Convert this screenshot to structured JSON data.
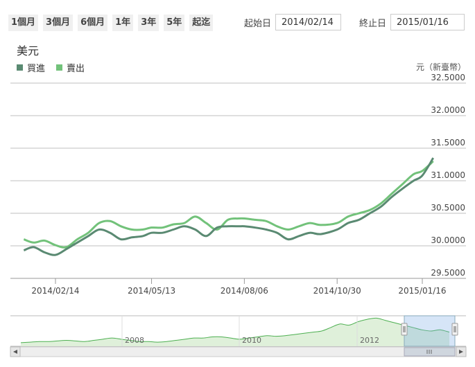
{
  "toolbar": {
    "ranges": [
      "1個月",
      "3個月",
      "6個月",
      "1年",
      "3年",
      "5年",
      "起迄"
    ],
    "start_label": "起始日",
    "start_value": "2014/02/14",
    "end_label": "終止日",
    "end_value": "2015/01/16"
  },
  "unit_label": "元（新臺幣）",
  "colors": {
    "buy": "#5a8a72",
    "sell": "#72c27a",
    "grid": "#bfbfbf",
    "navigator_fill": "#dff0da"
  },
  "chart_data": {
    "type": "line",
    "title": "美元",
    "ylim": [
      29.5,
      32.5
    ],
    "yticks": [
      "32.5000",
      "32.0000",
      "31.5000",
      "31.0000",
      "30.5000",
      "30.0000",
      "29.5000"
    ],
    "x_tick_labels": [
      "2014/02/14",
      "2014/05/13",
      "2014/08/06",
      "2014/10/30",
      "2015/01/16"
    ],
    "x": [
      "2014/01/16",
      "2014/01/25",
      "2014/02/04",
      "2014/02/14",
      "2014/02/24",
      "2014/03/06",
      "2014/03/16",
      "2014/03/26",
      "2014/04/05",
      "2014/04/15",
      "2014/04/25",
      "2014/05/05",
      "2014/05/13",
      "2014/05/23",
      "2014/06/02",
      "2014/06/12",
      "2014/06/22",
      "2014/07/02",
      "2014/07/12",
      "2014/07/22",
      "2014/08/01",
      "2014/08/06",
      "2014/08/16",
      "2014/08/26",
      "2014/09/05",
      "2014/09/15",
      "2014/09/25",
      "2014/10/05",
      "2014/10/15",
      "2014/10/30",
      "2014/11/09",
      "2014/11/19",
      "2014/11/29",
      "2014/12/09",
      "2014/12/19",
      "2014/12/29",
      "2015/01/08",
      "2015/01/16",
      "2015/01/26"
    ],
    "series": [
      {
        "name": "買進",
        "values": [
          29.93,
          29.98,
          29.9,
          29.86,
          29.95,
          30.05,
          30.15,
          30.25,
          30.2,
          30.1,
          30.13,
          30.15,
          30.2,
          30.2,
          30.25,
          30.3,
          30.25,
          30.15,
          30.28,
          30.3,
          30.3,
          30.3,
          30.28,
          30.25,
          30.2,
          30.1,
          30.15,
          30.2,
          30.18,
          30.25,
          30.35,
          30.4,
          30.5,
          30.6,
          30.75,
          30.88,
          31.0,
          31.08,
          31.35
        ]
      },
      {
        "name": "賣出",
        "values": [
          30.1,
          30.05,
          30.08,
          30.01,
          29.98,
          30.1,
          30.2,
          30.35,
          30.38,
          30.3,
          30.25,
          30.25,
          30.28,
          30.28,
          30.33,
          30.35,
          30.45,
          30.35,
          30.25,
          30.4,
          30.42,
          30.42,
          30.4,
          30.38,
          30.3,
          30.25,
          30.3,
          30.35,
          30.32,
          30.35,
          30.45,
          30.5,
          30.55,
          30.65,
          30.8,
          30.95,
          31.1,
          31.15,
          31.3
        ]
      }
    ],
    "navigator": {
      "year_labels": [
        "2008",
        "2010",
        "2012"
      ],
      "values": [
        29.9,
        29.95,
        30.0,
        30.0,
        30.05,
        30.1,
        30.05,
        30.0,
        30.1,
        30.2,
        30.3,
        30.2,
        30.1,
        30.0,
        30.0,
        29.95,
        30.0,
        30.1,
        30.2,
        30.3,
        30.3,
        30.4,
        30.4,
        30.3,
        30.2,
        30.3,
        30.4,
        30.5,
        30.45,
        30.5,
        30.6,
        30.7,
        30.8,
        30.9,
        31.2,
        31.5,
        31.4,
        31.7,
        31.9,
        32.0,
        31.8,
        31.6,
        31.4,
        31.2,
        31.0,
        30.9,
        31.0,
        30.8
      ]
    }
  }
}
